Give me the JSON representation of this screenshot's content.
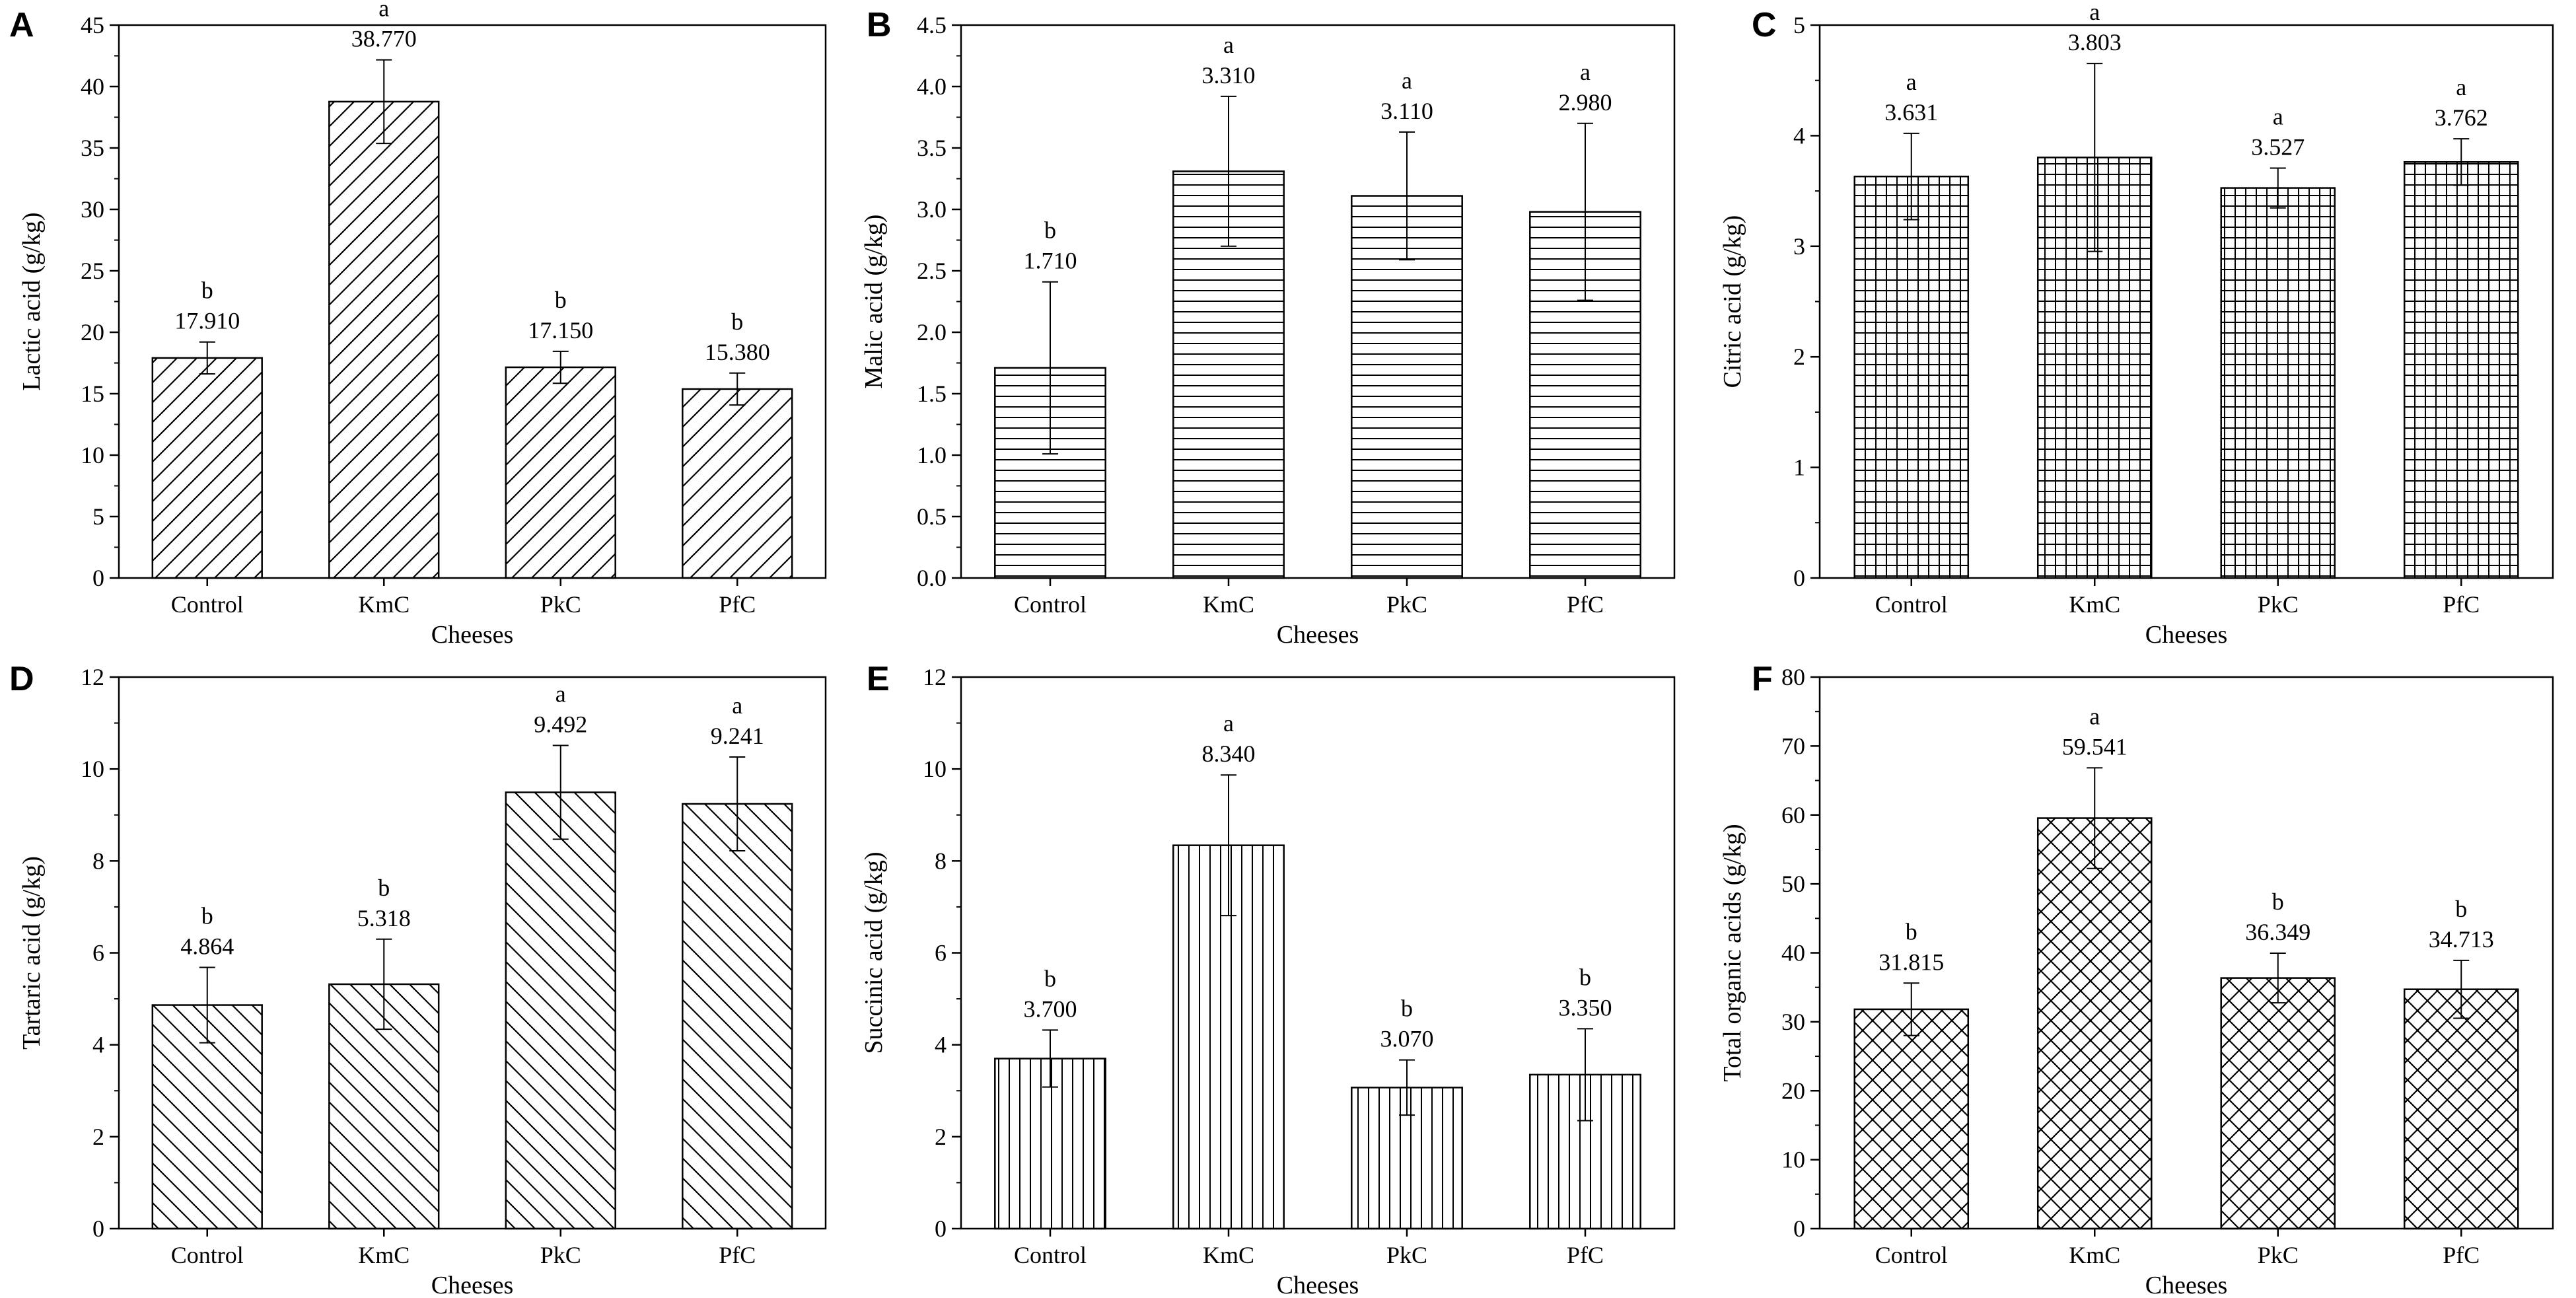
{
  "figure": {
    "chart_data": [
      {
        "panel": "A",
        "type": "bar",
        "categories": [
          "Control",
          "KmC",
          "PkC",
          "PfC"
        ],
        "values": [
          17.91,
          38.77,
          17.15,
          15.38
        ],
        "errors": [
          1.3,
          3.4,
          1.3,
          1.3
        ],
        "value_labels": [
          "17.910",
          "38.770",
          "17.150",
          "15.380"
        ],
        "letters": [
          "b",
          "a",
          "b",
          "b"
        ],
        "xlabel": "Cheeses",
        "ylabel": "Lactic acid (g/kg)",
        "ylim": [
          0,
          45
        ],
        "yticks": [
          0,
          5,
          10,
          15,
          20,
          25,
          30,
          35,
          40,
          45
        ],
        "ytick_labels": [
          "0",
          "5",
          "10",
          "15",
          "20",
          "25",
          "30",
          "35",
          "40",
          "45"
        ],
        "pattern": "diag-up"
      },
      {
        "panel": "B",
        "type": "bar",
        "categories": [
          "Control",
          "KmC",
          "PkC",
          "PfC"
        ],
        "values": [
          1.71,
          3.31,
          3.11,
          2.98
        ],
        "errors": [
          0.7,
          0.61,
          0.52,
          0.72
        ],
        "value_labels": [
          "1.710",
          "3.310",
          "3.110",
          "2.980"
        ],
        "letters": [
          "b",
          "a",
          "a",
          "a"
        ],
        "xlabel": "Cheeses",
        "ylabel": "Malic acid (g/kg)",
        "ylim": [
          0,
          4.5
        ],
        "yticks": [
          0,
          0.5,
          1,
          1.5,
          2,
          2.5,
          3,
          3.5,
          4,
          4.5
        ],
        "ytick_labels": [
          "0.0",
          "0.5",
          "1.0",
          "1.5",
          "2.0",
          "2.5",
          "3.0",
          "3.5",
          "4.0",
          "4.5"
        ],
        "pattern": "horizontal"
      },
      {
        "panel": "C",
        "type": "bar",
        "categories": [
          "Control",
          "KmC",
          "PkC",
          "PfC"
        ],
        "values": [
          3.631,
          3.803,
          3.527,
          3.762
        ],
        "errors": [
          0.39,
          0.85,
          0.18,
          0.21
        ],
        "value_labels": [
          "3.631",
          "3.803",
          "3.527",
          "3.762"
        ],
        "letters": [
          "a",
          "a",
          "a",
          "a"
        ],
        "xlabel": "Cheeses",
        "ylabel": "Citric acid (g/kg)",
        "ylim": [
          0,
          5
        ],
        "yticks": [
          0,
          1,
          2,
          3,
          4,
          5
        ],
        "ytick_labels": [
          "0",
          "1",
          "2",
          "3",
          "4",
          "5"
        ],
        "pattern": "grid"
      },
      {
        "panel": "D",
        "type": "bar",
        "categories": [
          "Control",
          "KmC",
          "PkC",
          "PfC"
        ],
        "values": [
          4.864,
          5.318,
          9.492,
          9.241
        ],
        "errors": [
          0.82,
          0.98,
          1.02,
          1.02
        ],
        "value_labels": [
          "4.864",
          "5.318",
          "9.492",
          "9.241"
        ],
        "letters": [
          "b",
          "b",
          "a",
          "a"
        ],
        "xlabel": "Cheeses",
        "ylabel": "Tartaric acid (g/kg)",
        "ylim": [
          0,
          12
        ],
        "yticks": [
          0,
          2,
          4,
          6,
          8,
          10,
          12
        ],
        "ytick_labels": [
          "0",
          "2",
          "4",
          "6",
          "8",
          "10",
          "12"
        ],
        "pattern": "diag-down"
      },
      {
        "panel": "E",
        "type": "bar",
        "categories": [
          "Control",
          "KmC",
          "PkC",
          "PfC"
        ],
        "values": [
          3.7,
          8.34,
          3.07,
          3.35
        ],
        "errors": [
          0.62,
          1.53,
          0.6,
          1.0
        ],
        "value_labels": [
          "3.700",
          "8.340",
          "3.070",
          "3.350"
        ],
        "letters": [
          "b",
          "a",
          "b",
          "b"
        ],
        "xlabel": "Cheeses",
        "ylabel": "Succinic acid (g/kg)",
        "ylim": [
          0,
          12
        ],
        "yticks": [
          0,
          2,
          4,
          6,
          8,
          10,
          12
        ],
        "ytick_labels": [
          "0",
          "2",
          "4",
          "6",
          "8",
          "10",
          "12"
        ],
        "pattern": "vertical"
      },
      {
        "panel": "F",
        "type": "bar",
        "categories": [
          "Control",
          "KmC",
          "PkC",
          "PfC"
        ],
        "values": [
          31.815,
          59.541,
          36.349,
          34.713
        ],
        "errors": [
          3.8,
          7.3,
          3.6,
          4.2
        ],
        "value_labels": [
          "31.815",
          "59.541",
          "36.349",
          "34.713"
        ],
        "letters": [
          "b",
          "a",
          "b",
          "b"
        ],
        "xlabel": "Cheeses",
        "ylabel": "Total organic acids (g/kg)",
        "ylim": [
          0,
          80
        ],
        "yticks": [
          0,
          10,
          20,
          30,
          40,
          50,
          60,
          70,
          80
        ],
        "ytick_labels": [
          "0",
          "10",
          "20",
          "30",
          "40",
          "50",
          "60",
          "70",
          "80"
        ],
        "pattern": "crosshatch"
      }
    ]
  }
}
